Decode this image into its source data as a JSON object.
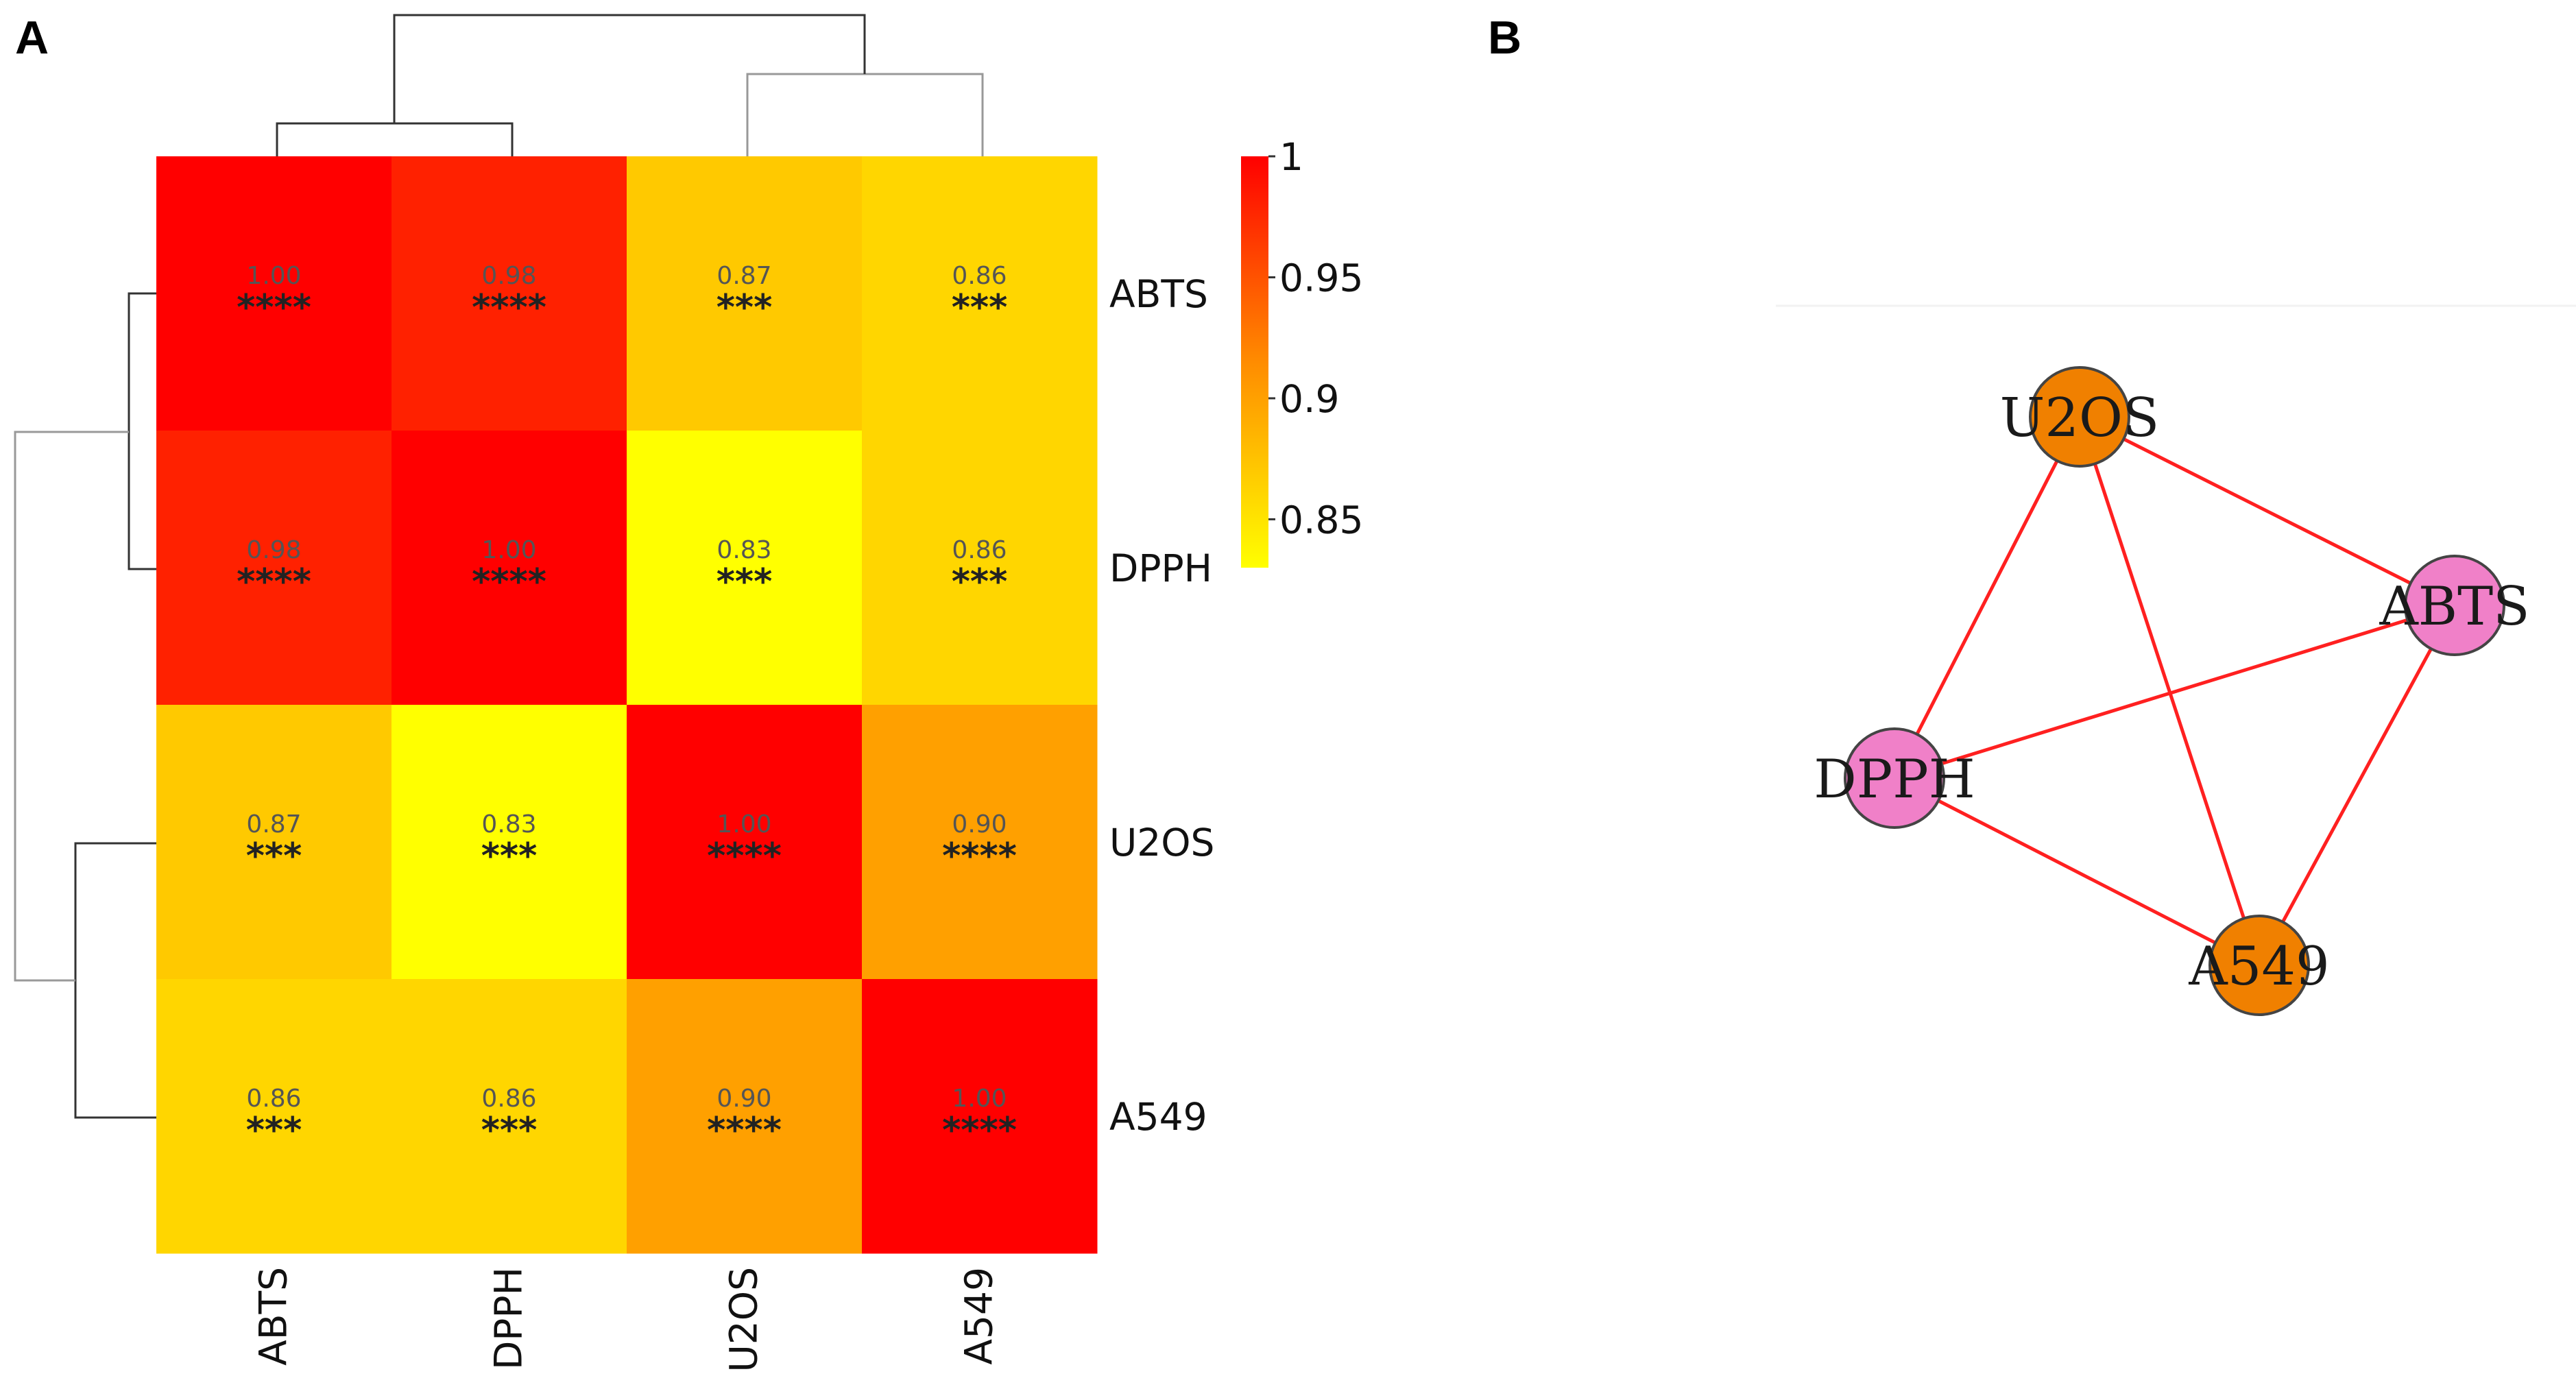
{
  "panels": {
    "a_label": "A",
    "b_label": "B"
  },
  "chart_data": [
    {
      "type": "heatmap",
      "title": "",
      "rows": [
        "ABTS",
        "DPPH",
        "U2OS",
        "A549"
      ],
      "columns": [
        "ABTS",
        "DPPH",
        "U2OS",
        "A549"
      ],
      "values": [
        [
          1.0,
          0.98,
          0.87,
          0.86
        ],
        [
          0.98,
          1.0,
          0.83,
          0.86
        ],
        [
          0.87,
          0.83,
          1.0,
          0.9
        ],
        [
          0.86,
          0.86,
          0.9,
          1.0
        ]
      ],
      "value_labels": [
        [
          "1.00",
          "0.98",
          "0.87",
          "0.86"
        ],
        [
          "0.98",
          "1.00",
          "0.83",
          "0.86"
        ],
        [
          "0.87",
          "0.83",
          "1.00",
          "0.90"
        ],
        [
          "0.86",
          "0.86",
          "0.90",
          "1.00"
        ]
      ],
      "significance": [
        [
          "****",
          "****",
          "***",
          "***"
        ],
        [
          "****",
          "****",
          "***",
          "***"
        ],
        [
          "***",
          "***",
          "****",
          "****"
        ],
        [
          "***",
          "***",
          "****",
          "****"
        ]
      ],
      "colorbar": {
        "range": [
          0.83,
          1.0
        ],
        "ticks": [
          {
            "value": 1.0,
            "label": "1"
          },
          {
            "value": 0.95,
            "label": "0.95"
          },
          {
            "value": 0.9,
            "label": "0.9"
          },
          {
            "value": 0.85,
            "label": "0.85"
          }
        ],
        "colors": {
          "high": "#ff0000",
          "mid": "#ff8c00",
          "low": "#ffff00"
        }
      },
      "dendrogram": {
        "clusters": [
          [
            "ABTS",
            "DPPH"
          ],
          [
            "U2OS",
            "A549"
          ]
        ]
      }
    },
    {
      "type": "network",
      "nodes": [
        {
          "id": "U2OS",
          "label": "U2OS",
          "color": "#f08000"
        },
        {
          "id": "ABTS",
          "label": "ABTS",
          "color": "#f080c8"
        },
        {
          "id": "DPPH",
          "label": "DPPH",
          "color": "#f080c8"
        },
        {
          "id": "A549",
          "label": "A549",
          "color": "#f08000"
        }
      ],
      "edges": [
        [
          "U2OS",
          "ABTS"
        ],
        [
          "U2OS",
          "DPPH"
        ],
        [
          "U2OS",
          "A549"
        ],
        [
          "ABTS",
          "DPPH"
        ],
        [
          "ABTS",
          "A549"
        ],
        [
          "DPPH",
          "A549"
        ]
      ],
      "edge_color": "#ff2020",
      "node_stroke": "#444444"
    }
  ]
}
